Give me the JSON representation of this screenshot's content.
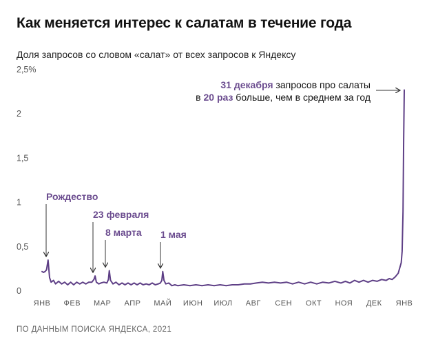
{
  "header": {
    "title": "Как меняется интерес к салатам в течение года",
    "subtitle": "Доля запросов со словом «салат» от всех запросов к Яндексу"
  },
  "footer": {
    "source": "ПО ДАННЫМ ПОИСКА ЯНДЕКСА, 2021"
  },
  "colors": {
    "line": "#5e3f86",
    "accent": "#6b4c8f",
    "axis": "#9a9a9a"
  },
  "chart_data": {
    "type": "line",
    "title": "Как меняется интерес к салатам в течение года",
    "subtitle": "Доля запросов со словом «салат» от всех запросов к Яндексу",
    "y_tick_labels": [
      "0",
      "0,5",
      "1",
      "1,5",
      "2",
      "2,5%"
    ],
    "y_ticks": [
      0,
      0.5,
      1,
      1.5,
      2,
      2.5
    ],
    "ylim": [
      0,
      2.5
    ],
    "xlim": [
      0,
      12
    ],
    "x_tick_labels": [
      "ЯНВ",
      "ФЕВ",
      "МАР",
      "АПР",
      "МАЙ",
      "ИЮН",
      "ИЮЛ",
      "АВГ",
      "СЕН",
      "ОКТ",
      "НОЯ",
      "ДЕК",
      "ЯНВ"
    ],
    "x_ticks": [
      0,
      1,
      2,
      3,
      4,
      5,
      6,
      7,
      8,
      9,
      10,
      11,
      12
    ],
    "grid": false,
    "annotations": [
      {
        "key": "christmas",
        "label": "Рождество",
        "x": 0.2,
        "y": 0.35
      },
      {
        "key": "feb23",
        "label": "23 февраля",
        "x": 1.76,
        "y": 0.17
      },
      {
        "key": "mar8",
        "label": "8 марта",
        "x": 2.23,
        "y": 0.23
      },
      {
        "key": "may1",
        "label": "1 мая",
        "x": 4.0,
        "y": 0.22
      }
    ],
    "callout": {
      "bold1": "31 декабря",
      "text1": " запросов про салаты",
      "text2a": "в ",
      "bold2": "20 раз",
      "text2b": " больше, чем в среднем за год"
    },
    "series": [
      {
        "x": [
          0.0,
          0.05,
          0.1,
          0.15,
          0.2,
          0.25,
          0.3,
          0.38,
          0.45,
          0.55,
          0.65,
          0.75,
          0.85,
          0.95,
          1.05,
          1.15,
          1.25,
          1.35,
          1.45,
          1.55,
          1.65,
          1.72,
          1.76,
          1.8,
          1.88,
          1.95,
          2.05,
          2.15,
          2.2,
          2.23,
          2.27,
          2.35,
          2.45,
          2.55,
          2.65,
          2.75,
          2.85,
          2.95,
          3.05,
          3.15,
          3.25,
          3.35,
          3.45,
          3.55,
          3.65,
          3.75,
          3.85,
          3.92,
          3.97,
          4.0,
          4.04,
          4.1,
          4.2,
          4.3,
          4.4,
          4.5,
          4.7,
          4.9,
          5.1,
          5.3,
          5.5,
          5.7,
          5.9,
          6.1,
          6.3,
          6.5,
          6.7,
          6.9,
          7.1,
          7.3,
          7.5,
          7.7,
          7.9,
          8.1,
          8.3,
          8.5,
          8.7,
          8.9,
          9.1,
          9.3,
          9.5,
          9.7,
          9.9,
          10.05,
          10.2,
          10.35,
          10.5,
          10.65,
          10.8,
          10.95,
          11.1,
          11.25,
          11.4,
          11.5,
          11.6,
          11.7,
          11.8,
          11.85,
          11.9,
          11.93,
          11.96,
          11.98,
          12.0
        ],
        "values": [
          0.22,
          0.21,
          0.22,
          0.24,
          0.35,
          0.15,
          0.1,
          0.12,
          0.08,
          0.11,
          0.08,
          0.1,
          0.07,
          0.1,
          0.07,
          0.1,
          0.08,
          0.1,
          0.08,
          0.1,
          0.1,
          0.13,
          0.17,
          0.1,
          0.08,
          0.09,
          0.1,
          0.09,
          0.13,
          0.23,
          0.12,
          0.08,
          0.1,
          0.07,
          0.09,
          0.07,
          0.09,
          0.07,
          0.09,
          0.07,
          0.09,
          0.07,
          0.08,
          0.07,
          0.09,
          0.07,
          0.08,
          0.09,
          0.12,
          0.22,
          0.12,
          0.08,
          0.09,
          0.06,
          0.07,
          0.06,
          0.07,
          0.06,
          0.07,
          0.06,
          0.07,
          0.06,
          0.07,
          0.06,
          0.07,
          0.07,
          0.08,
          0.08,
          0.09,
          0.1,
          0.09,
          0.1,
          0.09,
          0.1,
          0.08,
          0.1,
          0.08,
          0.1,
          0.08,
          0.1,
          0.09,
          0.11,
          0.09,
          0.11,
          0.09,
          0.12,
          0.1,
          0.12,
          0.1,
          0.12,
          0.11,
          0.13,
          0.12,
          0.14,
          0.13,
          0.16,
          0.2,
          0.26,
          0.32,
          0.45,
          0.9,
          1.7,
          2.27
        ]
      }
    ]
  }
}
